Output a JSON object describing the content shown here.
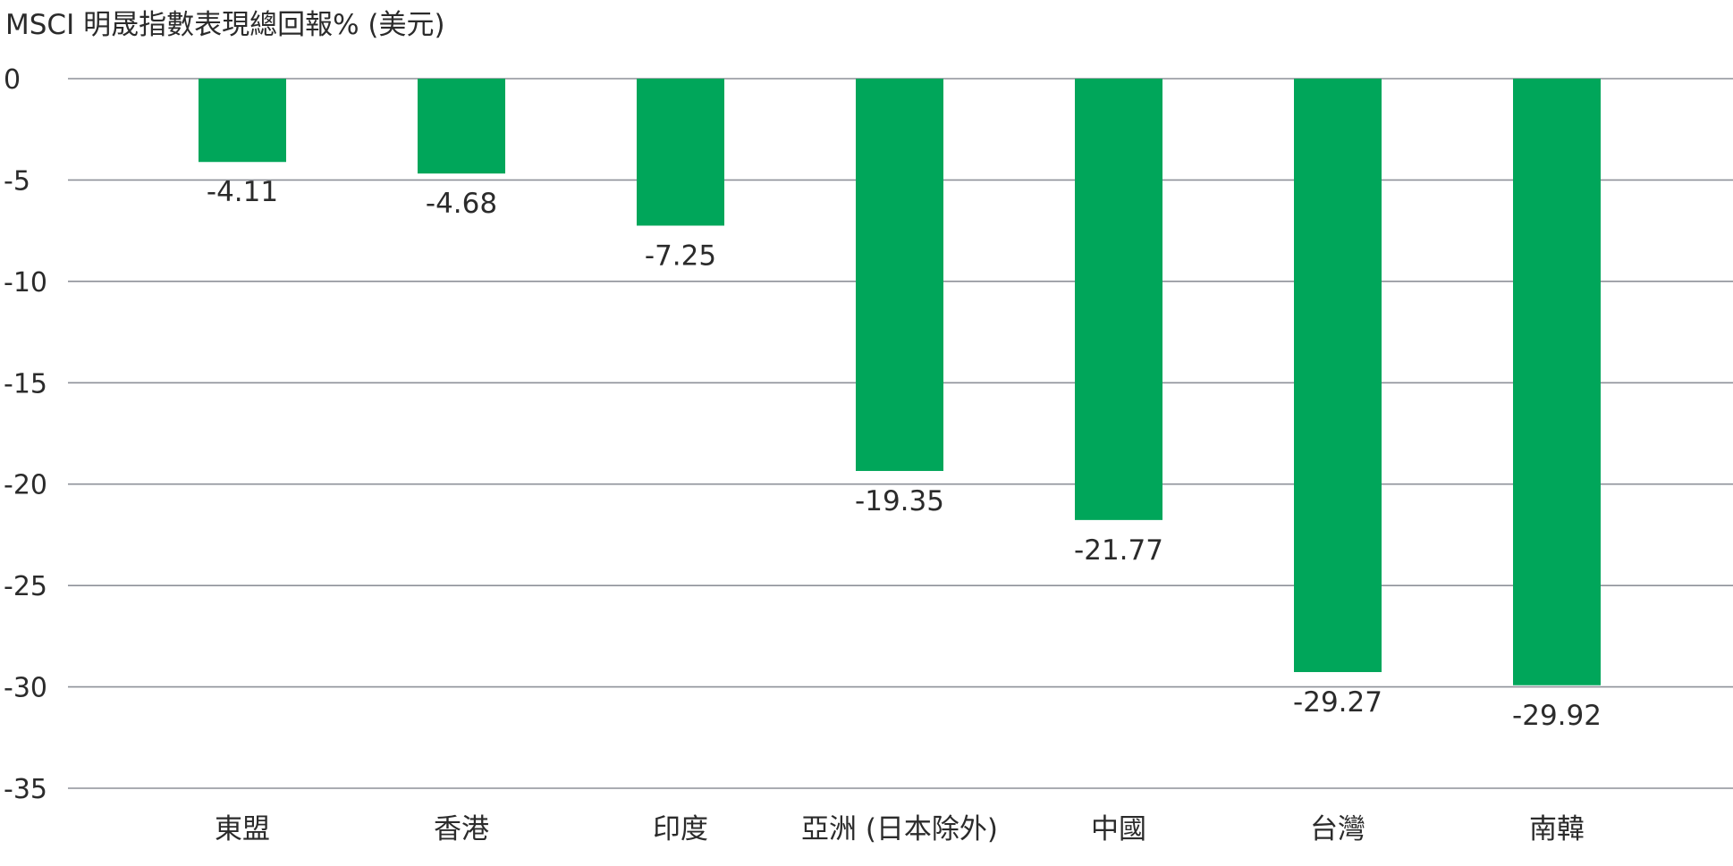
{
  "chart_data": {
    "type": "bar",
    "title": "",
    "ylabel": "MSCI 明晟指數表現總回報% (美元)",
    "xlabel": "",
    "categories": [
      "東盟",
      "香港",
      "印度",
      "亞洲 (日本除外)",
      "中國",
      "台灣",
      "南韓"
    ],
    "series": [
      {
        "values": [
          -4.11,
          -4.68,
          -7.25,
          -19.35,
          -21.77,
          -29.27,
          -29.92
        ]
      }
    ],
    "data_labels": [
      "-4.11",
      "-4.68",
      "-7.25",
      "-19.35",
      "-21.77",
      "-29.27",
      "-29.92"
    ],
    "ylim": [
      -35,
      0
    ],
    "yticks": [
      0,
      -5,
      -10,
      -15,
      -20,
      -25,
      -30,
      -35
    ],
    "ytick_labels": [
      "0",
      "-5",
      "-10",
      "-15",
      "-20",
      "-25",
      "-30",
      "-35"
    ],
    "grid": true,
    "legend": "none",
    "bar_color": "#00a65a",
    "grid_color": "#8e9199"
  }
}
